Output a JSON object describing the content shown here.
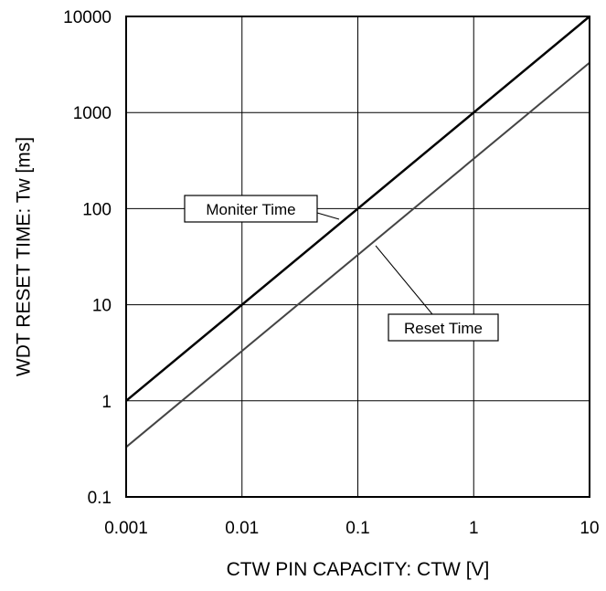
{
  "chart_data": {
    "type": "line",
    "title": "",
    "xlabel": "CTW PIN CAPACITY: CTW [V]",
    "ylabel": "WDT RESET TIME: Tw [ms]",
    "xscale": "log",
    "yscale": "log",
    "xlim": [
      0.001,
      10
    ],
    "ylim": [
      0.1,
      10000
    ],
    "grid": true,
    "x_ticks": [
      "0.001",
      "0.01",
      "0.1",
      "1",
      "10"
    ],
    "y_ticks": [
      "0.1",
      "1",
      "10",
      "100",
      "1000",
      "10000"
    ],
    "series": [
      {
        "name": "Moniter Time",
        "x": [
          0.001,
          10
        ],
        "y": [
          1,
          10000
        ],
        "color": "#000000"
      },
      {
        "name": "Reset Time",
        "x": [
          0.001,
          10
        ],
        "y": [
          0.33,
          3300
        ],
        "color": "#444444"
      }
    ],
    "annotations": [
      {
        "text": "Moniter Time",
        "series": 0
      },
      {
        "text": "Reset Time",
        "series": 1
      }
    ]
  }
}
